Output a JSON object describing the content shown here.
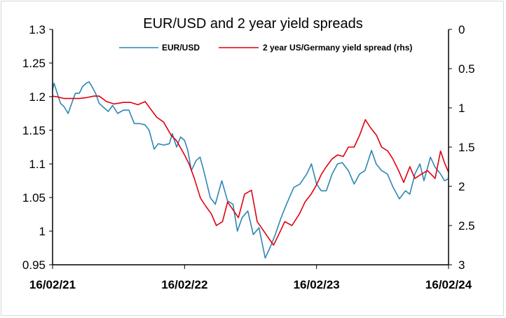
{
  "chart_data": {
    "type": "line",
    "title": "EUR/USD and 2 year yield spreads",
    "x_ticks": [
      "16/02/21",
      "16/02/22",
      "16/02/23",
      "16/02/24"
    ],
    "x_range": [
      "2021-02-16",
      "2024-02-16"
    ],
    "y_left": {
      "ticks": [
        "1.3",
        "1.25",
        "1.2",
        "1.15",
        "1.1",
        "1.05",
        "1",
        "0.95"
      ],
      "min": 0.95,
      "max": 1.3
    },
    "y_right": {
      "ticks": [
        "0",
        "0.5",
        "1",
        "1.5",
        "2",
        "2.5",
        "3"
      ],
      "min": 0,
      "max": 3,
      "inverted": true
    },
    "grid": false,
    "legend_position": "top",
    "series": [
      {
        "name": "EUR/USD",
        "axis": "left",
        "color": "#2e86b4",
        "points": [
          [
            "2021-02-16",
            1.21
          ],
          [
            "2021-02-20",
            1.22
          ],
          [
            "2021-03-01",
            1.205
          ],
          [
            "2021-03-10",
            1.19
          ],
          [
            "2021-03-20",
            1.185
          ],
          [
            "2021-03-31",
            1.175
          ],
          [
            "2021-04-10",
            1.19
          ],
          [
            "2021-04-20",
            1.205
          ],
          [
            "2021-05-01",
            1.205
          ],
          [
            "2021-05-10",
            1.215
          ],
          [
            "2021-05-20",
            1.22
          ],
          [
            "2021-05-28",
            1.222
          ],
          [
            "2021-06-05",
            1.215
          ],
          [
            "2021-06-15",
            1.205
          ],
          [
            "2021-06-25",
            1.19
          ],
          [
            "2021-07-05",
            1.185
          ],
          [
            "2021-07-20",
            1.178
          ],
          [
            "2021-08-01",
            1.187
          ],
          [
            "2021-08-15",
            1.175
          ],
          [
            "2021-08-31",
            1.18
          ],
          [
            "2021-09-15",
            1.18
          ],
          [
            "2021-09-30",
            1.16
          ],
          [
            "2021-10-15",
            1.16
          ],
          [
            "2021-10-30",
            1.158
          ],
          [
            "2021-11-10",
            1.15
          ],
          [
            "2021-11-24",
            1.122
          ],
          [
            "2021-12-05",
            1.13
          ],
          [
            "2021-12-20",
            1.128
          ],
          [
            "2022-01-05",
            1.13
          ],
          [
            "2022-01-13",
            1.145
          ],
          [
            "2022-01-25",
            1.125
          ],
          [
            "2022-02-05",
            1.14
          ],
          [
            "2022-02-16",
            1.135
          ],
          [
            "2022-02-25",
            1.12
          ],
          [
            "2022-03-07",
            1.09
          ],
          [
            "2022-03-20",
            1.105
          ],
          [
            "2022-03-31",
            1.11
          ],
          [
            "2022-04-10",
            1.09
          ],
          [
            "2022-04-28",
            1.05
          ],
          [
            "2022-05-12",
            1.04
          ],
          [
            "2022-05-30",
            1.075
          ],
          [
            "2022-06-15",
            1.045
          ],
          [
            "2022-06-30",
            1.04
          ],
          [
            "2022-07-12",
            1.0
          ],
          [
            "2022-07-25",
            1.02
          ],
          [
            "2022-08-10",
            1.03
          ],
          [
            "2022-08-25",
            0.995
          ],
          [
            "2022-09-10",
            1.005
          ],
          [
            "2022-09-27",
            0.96
          ],
          [
            "2022-10-10",
            0.975
          ],
          [
            "2022-10-25",
            0.995
          ],
          [
            "2022-11-10",
            1.02
          ],
          [
            "2022-11-25",
            1.04
          ],
          [
            "2022-12-15",
            1.065
          ],
          [
            "2023-01-01",
            1.07
          ],
          [
            "2023-01-20",
            1.085
          ],
          [
            "2023-02-02",
            1.1
          ],
          [
            "2023-02-16",
            1.07
          ],
          [
            "2023-03-01",
            1.06
          ],
          [
            "2023-03-15",
            1.06
          ],
          [
            "2023-03-31",
            1.085
          ],
          [
            "2023-04-15",
            1.1
          ],
          [
            "2023-04-28",
            1.102
          ],
          [
            "2023-05-15",
            1.09
          ],
          [
            "2023-05-31",
            1.07
          ],
          [
            "2023-06-15",
            1.085
          ],
          [
            "2023-06-30",
            1.09
          ],
          [
            "2023-07-18",
            1.12
          ],
          [
            "2023-07-31",
            1.1
          ],
          [
            "2023-08-15",
            1.09
          ],
          [
            "2023-08-31",
            1.085
          ],
          [
            "2023-09-15",
            1.066
          ],
          [
            "2023-10-03",
            1.048
          ],
          [
            "2023-10-20",
            1.06
          ],
          [
            "2023-11-01",
            1.055
          ],
          [
            "2023-11-15",
            1.085
          ],
          [
            "2023-11-29",
            1.1
          ],
          [
            "2023-12-10",
            1.075
          ],
          [
            "2023-12-28",
            1.11
          ],
          [
            "2024-01-10",
            1.095
          ],
          [
            "2024-01-25",
            1.085
          ],
          [
            "2024-02-05",
            1.075
          ],
          [
            "2024-02-16",
            1.078
          ]
        ]
      },
      {
        "name": "2 year US/Germany yield spread (rhs)",
        "axis": "right",
        "color": "#e0000f",
        "points": [
          [
            "2021-02-16",
            0.85
          ],
          [
            "2021-03-01",
            0.86
          ],
          [
            "2021-03-20",
            0.88
          ],
          [
            "2021-04-10",
            0.88
          ],
          [
            "2021-05-01",
            0.88
          ],
          [
            "2021-05-20",
            0.87
          ],
          [
            "2021-06-10",
            0.85
          ],
          [
            "2021-06-25",
            0.85
          ],
          [
            "2021-07-15",
            0.92
          ],
          [
            "2021-08-05",
            0.95
          ],
          [
            "2021-08-31",
            0.93
          ],
          [
            "2021-09-20",
            0.93
          ],
          [
            "2021-10-10",
            0.96
          ],
          [
            "2021-10-30",
            0.92
          ],
          [
            "2021-11-15",
            1.02
          ],
          [
            "2021-12-01",
            1.12
          ],
          [
            "2021-12-20",
            1.18
          ],
          [
            "2022-01-10",
            1.35
          ],
          [
            "2022-01-25",
            1.42
          ],
          [
            "2022-02-16",
            1.6
          ],
          [
            "2022-03-01",
            1.72
          ],
          [
            "2022-03-15",
            1.9
          ],
          [
            "2022-04-01",
            2.15
          ],
          [
            "2022-04-15",
            2.25
          ],
          [
            "2022-05-01",
            2.35
          ],
          [
            "2022-05-15",
            2.5
          ],
          [
            "2022-06-01",
            2.45
          ],
          [
            "2022-06-15",
            2.2
          ],
          [
            "2022-06-30",
            2.3
          ],
          [
            "2022-07-15",
            2.4
          ],
          [
            "2022-08-01",
            2.1
          ],
          [
            "2022-08-20",
            2.05
          ],
          [
            "2022-09-05",
            2.45
          ],
          [
            "2022-09-20",
            2.55
          ],
          [
            "2022-10-05",
            2.65
          ],
          [
            "2022-10-20",
            2.75
          ],
          [
            "2022-11-05",
            2.6
          ],
          [
            "2022-11-20",
            2.45
          ],
          [
            "2022-12-10",
            2.5
          ],
          [
            "2022-12-31",
            2.35
          ],
          [
            "2023-01-15",
            2.2
          ],
          [
            "2023-02-01",
            2.1
          ],
          [
            "2023-02-16",
            1.98
          ],
          [
            "2023-03-01",
            1.85
          ],
          [
            "2023-03-15",
            1.75
          ],
          [
            "2023-03-31",
            1.65
          ],
          [
            "2023-04-15",
            1.6
          ],
          [
            "2023-05-01",
            1.62
          ],
          [
            "2023-05-15",
            1.5
          ],
          [
            "2023-05-31",
            1.5
          ],
          [
            "2023-06-15",
            1.35
          ],
          [
            "2023-07-01",
            1.15
          ],
          [
            "2023-07-15",
            1.25
          ],
          [
            "2023-08-01",
            1.35
          ],
          [
            "2023-08-15",
            1.5
          ],
          [
            "2023-09-01",
            1.55
          ],
          [
            "2023-09-15",
            1.65
          ],
          [
            "2023-10-01",
            1.8
          ],
          [
            "2023-10-15",
            1.95
          ],
          [
            "2023-11-01",
            1.75
          ],
          [
            "2023-11-15",
            1.9
          ],
          [
            "2023-12-01",
            1.85
          ],
          [
            "2023-12-20",
            1.8
          ],
          [
            "2024-01-10",
            1.9
          ],
          [
            "2024-01-25",
            1.55
          ],
          [
            "2024-02-05",
            1.7
          ],
          [
            "2024-02-16",
            1.82
          ]
        ]
      }
    ]
  }
}
